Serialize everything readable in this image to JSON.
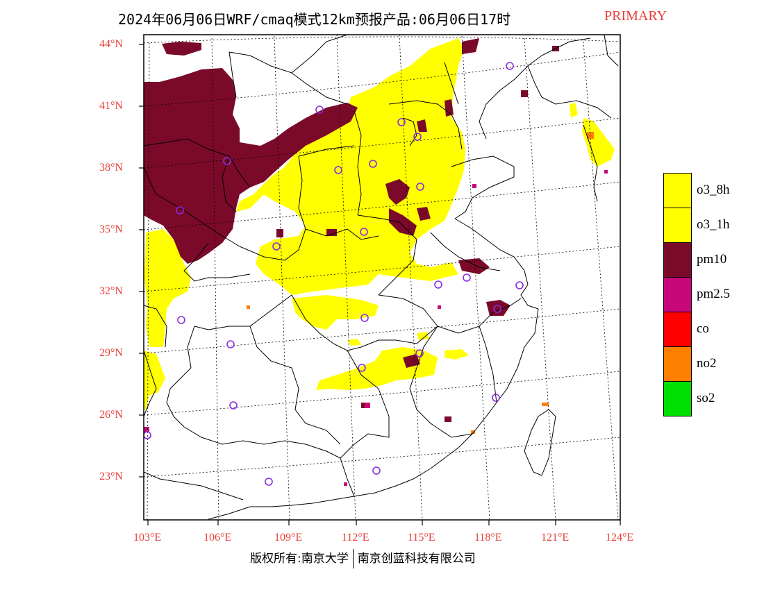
{
  "title": {
    "main": "2024年06月06日WRF/cmaq模式12km预报产品:06月06日17时",
    "primary": "PRIMARY"
  },
  "axes": {
    "lat_labels": [
      "44°N",
      "41°N",
      "38°N",
      "35°N",
      "32°N",
      "29°N",
      "26°N",
      "23°N"
    ],
    "lon_labels": [
      "103°E",
      "106°E",
      "109°E",
      "112°E",
      "115°E",
      "118°E",
      "121°E",
      "124°E"
    ]
  },
  "legend": {
    "items": [
      {
        "label": "o3_8h",
        "color": "#ffff00"
      },
      {
        "label": "o3_1h",
        "color": "#ffff00"
      },
      {
        "label": "pm10",
        "color": "#7b0a2a"
      },
      {
        "label": "pm2.5",
        "color": "#c8087a"
      },
      {
        "label": "co",
        "color": "#ff0000"
      },
      {
        "label": "no2",
        "color": "#ff7f00"
      },
      {
        "label": "so2",
        "color": "#00e000"
      }
    ]
  },
  "footer": {
    "left": "版权所有:南京大学",
    "right": "南京创蓝科技有限公司"
  },
  "colors": {
    "title_accent": "#e8403a",
    "o3": "#ffff00",
    "pm10": "#7b0a2a",
    "pm25": "#c8087a",
    "station": "#8a2be2"
  }
}
